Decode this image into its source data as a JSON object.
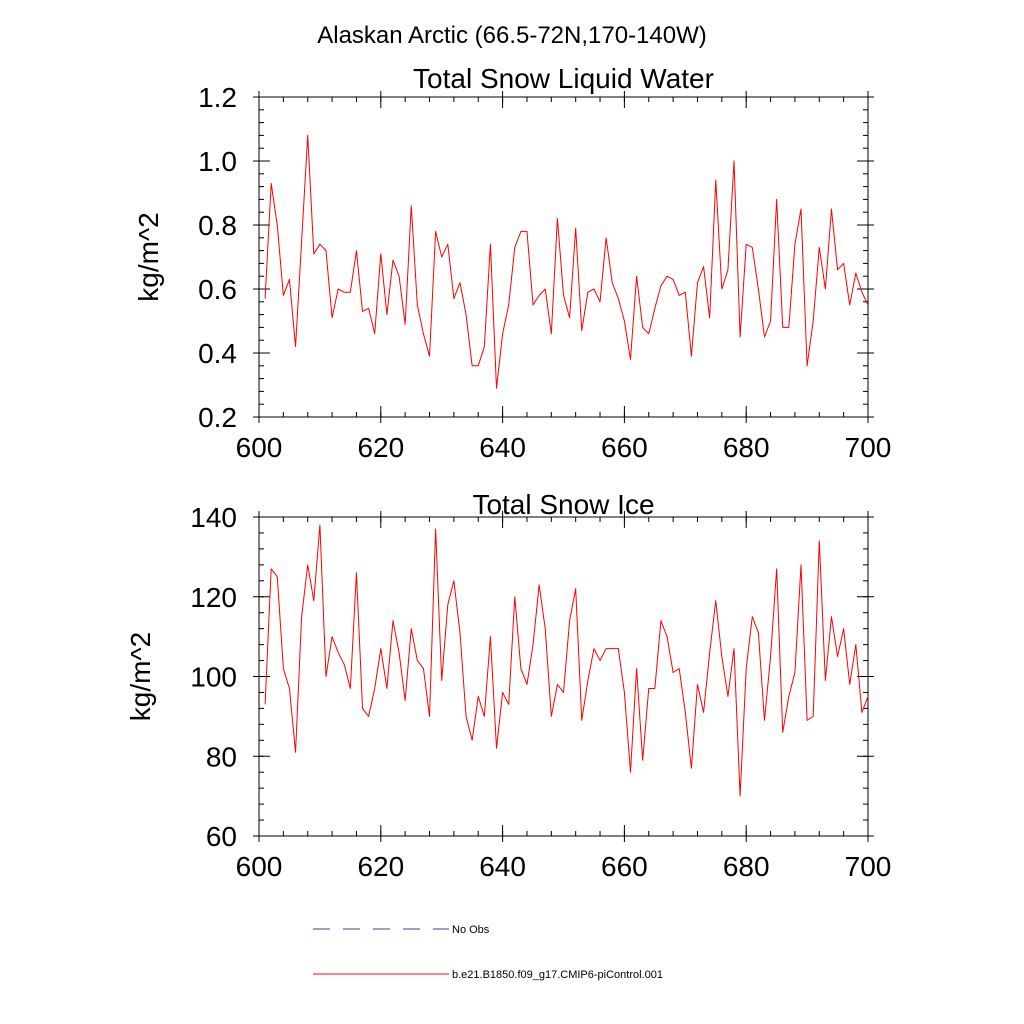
{
  "page_title": "Alaskan Arctic (66.5-72N,170-140W)",
  "colors": {
    "model_line": "#ff0000",
    "obs_line": "#3c3ca0",
    "axis": "#000000"
  },
  "legend": {
    "entries": [
      {
        "label": "No Obs",
        "style": "dashed",
        "color": "#3c3ca0"
      },
      {
        "label": "b.e21.B1850.f09_g17.CMIP6-piControl.001",
        "style": "solid",
        "color": "#ff0000"
      }
    ]
  },
  "chart_data": [
    {
      "type": "line",
      "title": "Total Snow Liquid Water",
      "xlabel": "",
      "ylabel": "kg/m^2",
      "xlim": [
        600,
        700
      ],
      "ylim": [
        0.2,
        1.2
      ],
      "xticks": [
        600,
        620,
        640,
        660,
        680,
        700
      ],
      "xtick_labels": [
        "600",
        "620",
        "640",
        "660",
        "680",
        "700"
      ],
      "yticks": [
        0.2,
        0.4,
        0.6,
        0.8,
        1.0,
        1.2
      ],
      "ytick_labels": [
        "0.2",
        "0.4",
        "0.6",
        "0.8",
        "1.0",
        "1.2"
      ],
      "grid": false,
      "x_start": 601,
      "series": [
        {
          "name": "b.e21.B1850.f09_g17.CMIP6-piControl.001",
          "color": "#ff0000",
          "values": [
            0.57,
            0.93,
            0.8,
            0.58,
            0.63,
            0.42,
            0.75,
            1.08,
            0.71,
            0.74,
            0.72,
            0.51,
            0.6,
            0.59,
            0.59,
            0.72,
            0.53,
            0.54,
            0.46,
            0.71,
            0.52,
            0.69,
            0.64,
            0.49,
            0.86,
            0.55,
            0.46,
            0.39,
            0.78,
            0.7,
            0.74,
            0.57,
            0.62,
            0.52,
            0.36,
            0.36,
            0.42,
            0.74,
            0.29,
            0.46,
            0.55,
            0.73,
            0.78,
            0.78,
            0.55,
            0.58,
            0.6,
            0.46,
            0.82,
            0.58,
            0.51,
            0.79,
            0.47,
            0.59,
            0.6,
            0.56,
            0.76,
            0.62,
            0.57,
            0.5,
            0.38,
            0.64,
            0.48,
            0.46,
            0.54,
            0.61,
            0.64,
            0.63,
            0.58,
            0.59,
            0.39,
            0.62,
            0.67,
            0.51,
            0.94,
            0.6,
            0.66,
            1.0,
            0.45,
            0.74,
            0.73,
            0.6,
            0.45,
            0.5,
            0.88,
            0.48,
            0.48,
            0.74,
            0.85,
            0.36,
            0.5,
            0.73,
            0.6,
            0.85,
            0.66,
            0.68,
            0.55,
            0.65,
            0.59,
            0.55
          ]
        }
      ]
    },
    {
      "type": "line",
      "title": "Total Snow Ice",
      "xlabel": "",
      "ylabel": "kg/m^2",
      "xlim": [
        600,
        700
      ],
      "ylim": [
        60,
        140
      ],
      "xticks": [
        600,
        620,
        640,
        660,
        680,
        700
      ],
      "xtick_labels": [
        "600",
        "620",
        "640",
        "660",
        "680",
        "700"
      ],
      "yticks": [
        60,
        80,
        100,
        120,
        140
      ],
      "ytick_labels": [
        "60",
        "80",
        "100",
        "120",
        "140"
      ],
      "grid": false,
      "x_start": 601,
      "series": [
        {
          "name": "b.e21.B1850.f09_g17.CMIP6-piControl.001",
          "color": "#ff0000",
          "values": [
            93,
            127,
            125,
            102,
            97,
            81,
            115,
            128,
            119,
            138,
            100,
            110,
            106,
            103,
            97,
            126,
            92,
            90,
            97,
            107,
            97,
            114,
            106,
            94,
            112,
            104,
            102,
            90,
            137,
            99,
            118,
            124,
            111,
            90,
            84,
            95,
            90,
            110,
            82,
            96,
            93,
            120,
            102,
            98,
            108,
            123,
            112,
            90,
            98,
            96,
            114,
            122,
            89,
            99,
            107,
            104,
            107,
            107,
            107,
            96,
            76,
            102,
            79,
            97,
            97,
            114,
            110,
            101,
            102,
            91,
            77,
            98,
            91,
            106,
            119,
            105,
            95,
            107,
            70,
            102,
            115,
            111,
            89,
            105,
            127,
            86,
            95,
            101,
            128,
            89,
            90,
            134,
            99,
            115,
            105,
            112,
            98,
            108,
            91,
            95
          ]
        }
      ]
    }
  ]
}
